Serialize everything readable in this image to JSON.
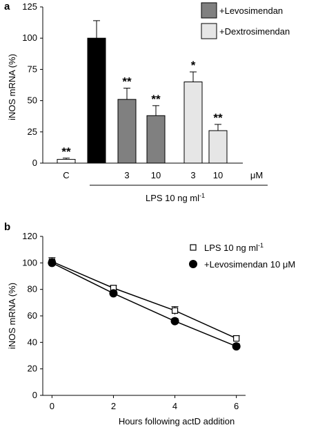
{
  "chart_data": [
    {
      "panel": "a",
      "type": "bar",
      "ylabel": "iNOS mRNA (%)",
      "ylim": [
        0,
        125
      ],
      "yticks": [
        0,
        25,
        50,
        75,
        100,
        125
      ],
      "legend": [
        {
          "label": "+Levosimendan",
          "color": "#808080"
        },
        {
          "label": "+Dextrosimendan",
          "color": "#e6e6e6"
        }
      ],
      "bars": [
        {
          "tick": "C",
          "value": 3,
          "error": 1,
          "color": "#ffffff",
          "sig": "**"
        },
        {
          "tick": "",
          "value": 100,
          "error": 14,
          "color": "#000000",
          "sig": ""
        },
        {
          "tick": "3",
          "value": 51,
          "error": 9,
          "color": "#808080",
          "sig": "**"
        },
        {
          "tick": "10",
          "value": 38,
          "error": 8,
          "color": "#808080",
          "sig": "**"
        },
        {
          "tick": "3",
          "value": 65,
          "error": 8,
          "color": "#e6e6e6",
          "sig": "*"
        },
        {
          "tick": "10",
          "value": 26,
          "error": 5,
          "color": "#e6e6e6",
          "sig": "**"
        }
      ],
      "unit_label": "μM",
      "group_label": "LPS 10 ng ml",
      "group_label_sup": "-1"
    },
    {
      "panel": "b",
      "type": "line",
      "xlabel": "Hours following actD addition",
      "ylabel": "iNOS mRNA (%)",
      "xlim": [
        -0.3,
        6.3
      ],
      "ylim": [
        0,
        120
      ],
      "xticks": [
        0,
        2,
        4,
        6
      ],
      "yticks": [
        0,
        20,
        40,
        60,
        80,
        100,
        120
      ],
      "series": [
        {
          "name": "LPS 10 ng ml",
          "name_sup": "-1",
          "marker": "open-square",
          "x": [
            0,
            2,
            4,
            6
          ],
          "y": [
            101,
            81,
            64,
            43
          ],
          "error": [
            3,
            2,
            3,
            2
          ]
        },
        {
          "name": "+Levosimendan 10 μM",
          "name_sup": "",
          "marker": "filled-circle",
          "x": [
            0,
            2,
            4,
            6
          ],
          "y": [
            100,
            77,
            56,
            37
          ],
          "error": [
            2,
            2,
            2,
            2
          ]
        }
      ]
    }
  ]
}
